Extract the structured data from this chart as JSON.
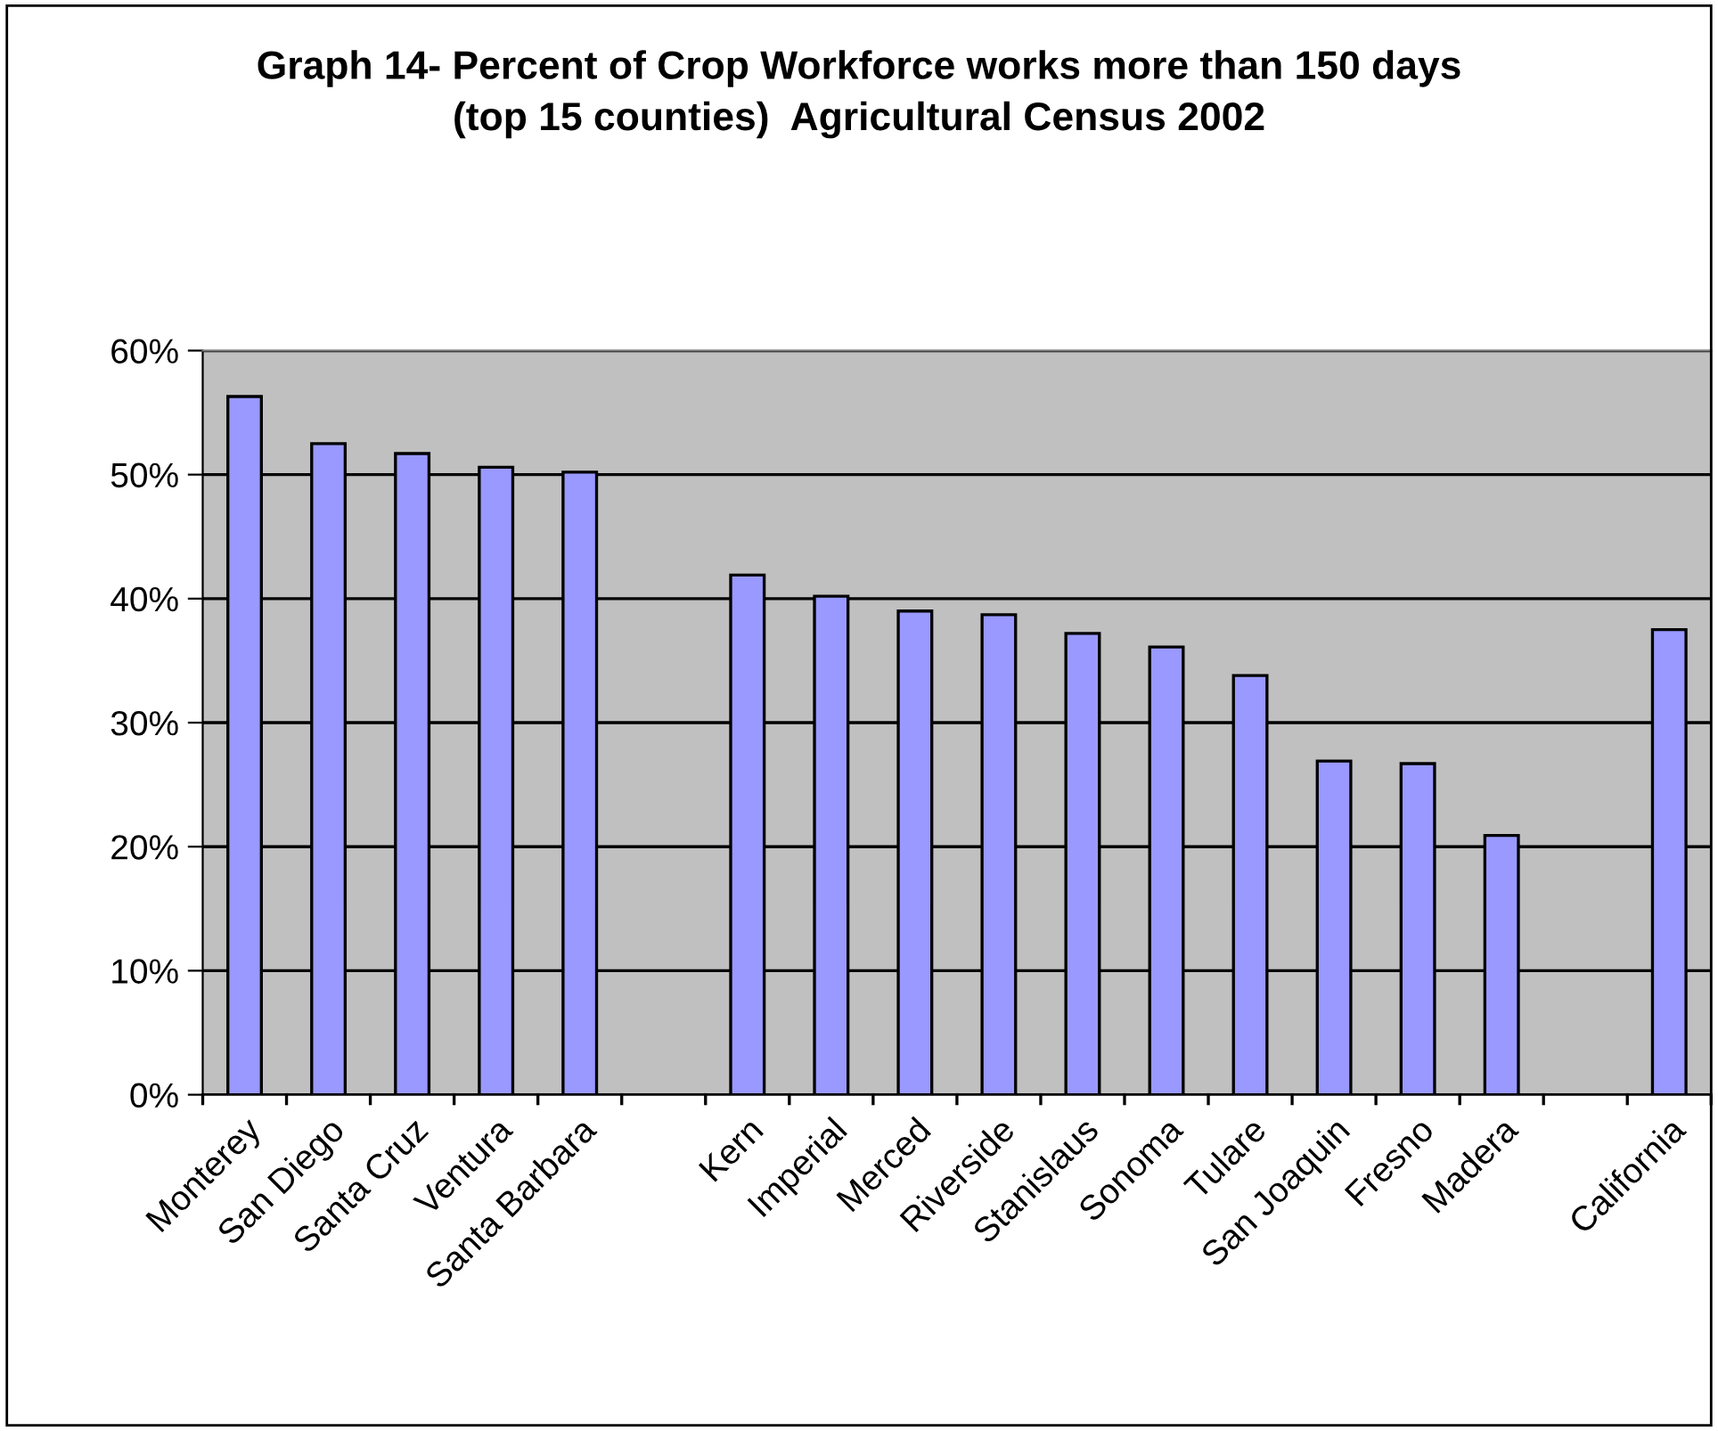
{
  "chart_data": {
    "type": "bar",
    "title": "Graph 14- Percent of Crop Workforce works more than 150 days\n(top 15 counties)  Agricultural Census 2002",
    "categories": [
      "Monterey",
      "San Diego",
      "Santa Cruz",
      "Ventura",
      "Santa Barbara",
      null,
      "Kern",
      "Imperial",
      "Merced",
      "Riverside",
      "Stanislaus",
      "Sonoma",
      "Tulare",
      "San Joaquin",
      "Fresno",
      "Madera",
      null,
      "California"
    ],
    "values": [
      56.3,
      52.5,
      51.7,
      50.6,
      50.2,
      null,
      41.9,
      40.2,
      39.0,
      38.7,
      37.2,
      36.1,
      33.8,
      26.9,
      26.7,
      20.9,
      null,
      37.5
    ],
    "color": "#9999ff",
    "ylim": [
      0,
      60
    ],
    "yticks": [
      {
        "value": 0,
        "label": "0%"
      },
      {
        "value": 10,
        "label": "10%"
      },
      {
        "value": 20,
        "label": "20%"
      },
      {
        "value": 30,
        "label": "30%"
      },
      {
        "value": 40,
        "label": "40%"
      },
      {
        "value": 50,
        "label": "50%"
      },
      {
        "value": 60,
        "label": "60%"
      }
    ],
    "grid": "y",
    "legend": false
  }
}
